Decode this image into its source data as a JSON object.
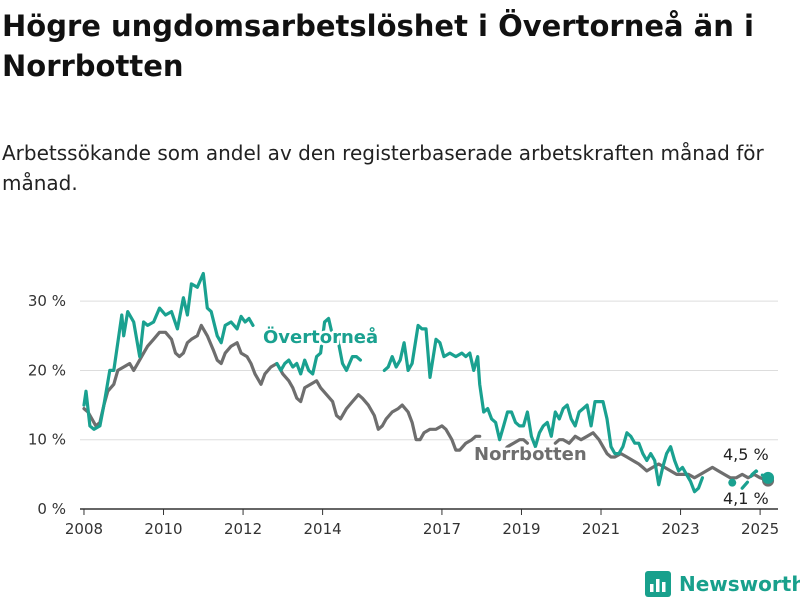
{
  "title": "Högre ungdomsarbetslöshet i Övertorneå än i Norrbotten",
  "subtitle": "Arbetssökande som andel av den registerbaserade arbetskraften månad för månad.",
  "logo": {
    "text": "Newsworthy",
    "icon": "newsworthy-bar-chart-icon"
  },
  "colors": {
    "overtornea": "#1aa190",
    "norrbotten": "#6e6e6e",
    "grid": "#dddddd",
    "axis": "#333333"
  },
  "chart_data": {
    "type": "line",
    "title": "Högre ungdomsarbetslöshet i Övertorneå än i Norrbotten",
    "subtitle": "Arbetssökande som andel av den registerbaserade arbetskraften månad för månad.",
    "xlim": [
      2007.9,
      2025.45
    ],
    "ylim": [
      0,
      34.5
    ],
    "yticks": [
      0,
      10,
      20,
      30
    ],
    "ytick_labels": [
      "0 %",
      "10 %",
      "20 %",
      "30 %"
    ],
    "xticks": [
      2008,
      2010,
      2012,
      2014,
      2017,
      2019,
      2021,
      2023,
      2025
    ],
    "xtick_labels": [
      "2008",
      "2010",
      "2012",
      "2014",
      "2017",
      "2019",
      "2021",
      "2023",
      "2025"
    ],
    "grid": true,
    "series": [
      {
        "name": "Övertorneå",
        "end_label": "4,5 %",
        "points": [
          [
            2008.0,
            15.0
          ],
          [
            2008.05,
            17.0
          ],
          [
            2008.15,
            12.0
          ],
          [
            2008.25,
            11.5
          ],
          [
            2008.4,
            12.0
          ],
          [
            2008.5,
            15.0
          ],
          [
            2008.65,
            20.0
          ],
          [
            2008.75,
            20.0
          ],
          [
            2008.85,
            24.0
          ],
          [
            2008.95,
            28.0
          ],
          [
            2009.0,
            25.0
          ],
          [
            2009.1,
            28.5
          ],
          [
            2009.25,
            27.0
          ],
          [
            2009.4,
            22.0
          ],
          [
            2009.5,
            27.0
          ],
          [
            2009.6,
            26.5
          ],
          [
            2009.75,
            27.0
          ],
          [
            2009.9,
            29.0
          ],
          [
            2010.05,
            28.0
          ],
          [
            2010.2,
            28.5
          ],
          [
            2010.35,
            26.0
          ],
          [
            2010.5,
            30.5
          ],
          [
            2010.6,
            28.0
          ],
          [
            2010.7,
            32.5
          ],
          [
            2010.85,
            32.0
          ],
          [
            2011.0,
            34.0
          ],
          [
            2011.1,
            29.0
          ],
          [
            2011.2,
            28.5
          ],
          [
            2011.35,
            25.0
          ],
          [
            2011.45,
            24.0
          ],
          [
            2011.55,
            26.5
          ],
          [
            2011.7,
            27.0
          ],
          [
            2011.85,
            26.0
          ],
          [
            2011.95,
            27.8
          ],
          [
            2012.05,
            27.0
          ],
          [
            2012.15,
            27.5
          ],
          [
            2012.25,
            26.5
          ]
        ]
      },
      {
        "name": "Övertorneå",
        "points": [
          [
            2012.85,
            21.0
          ],
          [
            2012.95,
            20.0
          ],
          [
            2013.05,
            21.0
          ],
          [
            2013.15,
            21.5
          ],
          [
            2013.25,
            20.5
          ],
          [
            2013.35,
            21.0
          ],
          [
            2013.45,
            19.5
          ],
          [
            2013.55,
            21.5
          ],
          [
            2013.65,
            20.0
          ],
          [
            2013.75,
            19.5
          ],
          [
            2013.85,
            22.0
          ],
          [
            2013.95,
            22.5
          ],
          [
            2014.05,
            27.0
          ],
          [
            2014.15,
            27.5
          ],
          [
            2014.25,
            25.0
          ],
          [
            2014.35,
            25.5
          ],
          [
            2014.5,
            21.0
          ],
          [
            2014.6,
            20.0
          ],
          [
            2014.75,
            22.0
          ],
          [
            2014.85,
            22.0
          ],
          [
            2014.95,
            21.5
          ]
        ]
      },
      {
        "name": "Övertorneå",
        "points": [
          [
            2015.55,
            20.0
          ],
          [
            2015.65,
            20.5
          ],
          [
            2015.75,
            22.0
          ],
          [
            2015.85,
            20.5
          ],
          [
            2015.95,
            21.5
          ],
          [
            2016.05,
            24.0
          ],
          [
            2016.15,
            20.0
          ],
          [
            2016.25,
            21.0
          ],
          [
            2016.4,
            26.5
          ],
          [
            2016.5,
            26.0
          ],
          [
            2016.6,
            26.0
          ],
          [
            2016.7,
            19.0
          ],
          [
            2016.85,
            24.5
          ],
          [
            2016.95,
            24.0
          ],
          [
            2017.05,
            22.0
          ],
          [
            2017.2,
            22.5
          ],
          [
            2017.35,
            22.0
          ],
          [
            2017.5,
            22.5
          ],
          [
            2017.6,
            22.0
          ],
          [
            2017.7,
            22.5
          ],
          [
            2017.8,
            20.0
          ],
          [
            2017.9,
            22.0
          ],
          [
            2017.95,
            18.0
          ],
          [
            2018.05,
            14.0
          ],
          [
            2018.15,
            14.5
          ],
          [
            2018.25,
            13.0
          ],
          [
            2018.35,
            12.5
          ],
          [
            2018.45,
            10.0
          ],
          [
            2018.55,
            12.0
          ],
          [
            2018.65,
            14.0
          ],
          [
            2018.75,
            14.0
          ],
          [
            2018.85,
            12.5
          ],
          [
            2018.95,
            12.0
          ],
          [
            2019.05,
            12.0
          ],
          [
            2019.15,
            14.0
          ],
          [
            2019.25,
            10.5
          ],
          [
            2019.35,
            9.0
          ],
          [
            2019.45,
            11.0
          ],
          [
            2019.55,
            12.0
          ],
          [
            2019.65,
            12.5
          ],
          [
            2019.75,
            10.5
          ],
          [
            2019.85,
            14.0
          ],
          [
            2019.95,
            13.0
          ],
          [
            2020.05,
            14.5
          ],
          [
            2020.15,
            15.0
          ],
          [
            2020.25,
            13.0
          ],
          [
            2020.35,
            12.0
          ],
          [
            2020.45,
            14.0
          ],
          [
            2020.55,
            14.5
          ],
          [
            2020.65,
            15.0
          ],
          [
            2020.75,
            12.0
          ],
          [
            2020.85,
            15.5
          ],
          [
            2020.95,
            15.5
          ],
          [
            2021.05,
            15.5
          ],
          [
            2021.15,
            13.0
          ],
          [
            2021.25,
            9.0
          ],
          [
            2021.35,
            8.0
          ],
          [
            2021.45,
            8.0
          ],
          [
            2021.55,
            9.0
          ],
          [
            2021.65,
            11.0
          ],
          [
            2021.75,
            10.5
          ],
          [
            2021.85,
            9.5
          ],
          [
            2021.95,
            9.5
          ],
          [
            2022.05,
            8.0
          ],
          [
            2022.15,
            7.0
          ],
          [
            2022.25,
            8.0
          ],
          [
            2022.35,
            7.0
          ],
          [
            2022.45,
            3.5
          ],
          [
            2022.55,
            6.0
          ],
          [
            2022.65,
            8.0
          ],
          [
            2022.75,
            9.0
          ],
          [
            2022.85,
            7.0
          ],
          [
            2022.95,
            5.5
          ],
          [
            2023.05,
            6.0
          ],
          [
            2023.15,
            5.0
          ],
          [
            2023.25,
            4.0
          ],
          [
            2023.35,
            2.5
          ],
          [
            2023.45,
            3.0
          ],
          [
            2023.55,
            4.5
          ]
        ]
      },
      {
        "name": "Övertorneå",
        "dashed": true,
        "points": [
          [
            2024.55,
            3.0
          ],
          [
            2024.7,
            4.0
          ],
          [
            2024.8,
            5.0
          ],
          [
            2024.9,
            5.5
          ],
          [
            2025.0,
            5.0
          ],
          [
            2025.1,
            4.8
          ],
          [
            2025.2,
            4.5
          ]
        ]
      },
      {
        "name": "Norrbotten",
        "end_label": "4,1 %",
        "points": [
          [
            2008.0,
            14.5
          ],
          [
            2008.1,
            14.0
          ],
          [
            2008.2,
            13.0
          ],
          [
            2008.3,
            12.0
          ],
          [
            2008.4,
            12.5
          ],
          [
            2008.5,
            15.0
          ],
          [
            2008.6,
            17.0
          ],
          [
            2008.75,
            18.0
          ],
          [
            2008.85,
            20.0
          ],
          [
            2009.0,
            20.5
          ],
          [
            2009.15,
            21.0
          ],
          [
            2009.25,
            20.0
          ],
          [
            2009.35,
            21.0
          ],
          [
            2009.5,
            22.5
          ],
          [
            2009.6,
            23.5
          ],
          [
            2009.75,
            24.5
          ],
          [
            2009.9,
            25.5
          ],
          [
            2010.05,
            25.5
          ],
          [
            2010.2,
            24.5
          ],
          [
            2010.3,
            22.5
          ],
          [
            2010.4,
            22.0
          ],
          [
            2010.5,
            22.5
          ],
          [
            2010.6,
            24.0
          ],
          [
            2010.7,
            24.5
          ],
          [
            2010.85,
            25.0
          ],
          [
            2010.95,
            26.5
          ],
          [
            2011.1,
            25.0
          ],
          [
            2011.25,
            23.0
          ],
          [
            2011.35,
            21.5
          ],
          [
            2011.45,
            21.0
          ],
          [
            2011.55,
            22.5
          ],
          [
            2011.7,
            23.5
          ],
          [
            2011.85,
            24.0
          ],
          [
            2011.95,
            22.5
          ],
          [
            2012.1,
            22.0
          ],
          [
            2012.2,
            21.0
          ],
          [
            2012.3,
            19.5
          ],
          [
            2012.45,
            18.0
          ],
          [
            2012.55,
            19.5
          ],
          [
            2012.7,
            20.5
          ],
          [
            2012.85,
            21.0
          ],
          [
            2013.0,
            19.5
          ],
          [
            2013.15,
            18.5
          ],
          [
            2013.25,
            17.5
          ],
          [
            2013.35,
            16.0
          ],
          [
            2013.45,
            15.5
          ],
          [
            2013.55,
            17.5
          ],
          [
            2013.7,
            18.0
          ],
          [
            2013.85,
            18.5
          ],
          [
            2013.95,
            17.5
          ],
          [
            2014.1,
            16.5
          ],
          [
            2014.25,
            15.5
          ],
          [
            2014.35,
            13.5
          ],
          [
            2014.45,
            13.0
          ],
          [
            2014.6,
            14.5
          ],
          [
            2014.75,
            15.5
          ],
          [
            2014.9,
            16.5
          ],
          [
            2015.0,
            16.0
          ],
          [
            2015.15,
            15.0
          ],
          [
            2015.3,
            13.5
          ],
          [
            2015.4,
            11.5
          ],
          [
            2015.5,
            12.0
          ],
          [
            2015.6,
            13.0
          ],
          [
            2015.75,
            14.0
          ],
          [
            2015.9,
            14.5
          ],
          [
            2016.0,
            15.0
          ],
          [
            2016.15,
            14.0
          ],
          [
            2016.25,
            12.5
          ],
          [
            2016.35,
            10.0
          ],
          [
            2016.45,
            10.0
          ],
          [
            2016.55,
            11.0
          ],
          [
            2016.7,
            11.5
          ],
          [
            2016.85,
            11.5
          ],
          [
            2017.0,
            12.0
          ],
          [
            2017.1,
            11.5
          ],
          [
            2017.25,
            10.0
          ],
          [
            2017.35,
            8.5
          ],
          [
            2017.45,
            8.5
          ],
          [
            2017.6,
            9.5
          ],
          [
            2017.75,
            10.0
          ],
          [
            2017.85,
            10.5
          ],
          [
            2017.95,
            10.5
          ]
        ]
      },
      {
        "name": "Norrbotten",
        "points": [
          [
            2018.35,
            8.5
          ],
          [
            2018.5,
            8.0
          ],
          [
            2018.65,
            9.0
          ],
          [
            2018.8,
            9.5
          ],
          [
            2018.95,
            10.0
          ],
          [
            2019.05,
            10.0
          ],
          [
            2019.15,
            9.5
          ]
        ]
      },
      {
        "name": "Norrbotten",
        "points": [
          [
            2019.85,
            9.5
          ],
          [
            2019.95,
            10.0
          ],
          [
            2020.05,
            10.0
          ],
          [
            2020.2,
            9.5
          ],
          [
            2020.35,
            10.5
          ],
          [
            2020.5,
            10.0
          ],
          [
            2020.65,
            10.5
          ],
          [
            2020.8,
            11.0
          ],
          [
            2020.95,
            10.0
          ],
          [
            2021.05,
            9.0
          ],
          [
            2021.15,
            8.0
          ],
          [
            2021.25,
            7.5
          ],
          [
            2021.35,
            7.5
          ],
          [
            2021.5,
            8.0
          ],
          [
            2021.65,
            7.5
          ],
          [
            2021.8,
            7.0
          ],
          [
            2021.95,
            6.5
          ],
          [
            2022.05,
            6.0
          ],
          [
            2022.15,
            5.5
          ],
          [
            2022.3,
            6.0
          ],
          [
            2022.45,
            6.5
          ],
          [
            2022.6,
            6.0
          ],
          [
            2022.75,
            5.5
          ],
          [
            2022.9,
            5.0
          ],
          [
            2023.05,
            5.0
          ],
          [
            2023.2,
            5.0
          ],
          [
            2023.35,
            4.5
          ],
          [
            2023.5,
            5.0
          ],
          [
            2023.65,
            5.5
          ],
          [
            2023.8,
            6.0
          ],
          [
            2023.95,
            5.5
          ],
          [
            2024.1,
            5.0
          ],
          [
            2024.25,
            4.5
          ],
          [
            2024.4,
            4.5
          ],
          [
            2024.55,
            5.0
          ],
          [
            2024.7,
            4.5
          ],
          [
            2024.85,
            5.0
          ],
          [
            2025.0,
            4.5
          ],
          [
            2025.1,
            4.3
          ],
          [
            2025.2,
            4.1
          ]
        ]
      }
    ]
  }
}
